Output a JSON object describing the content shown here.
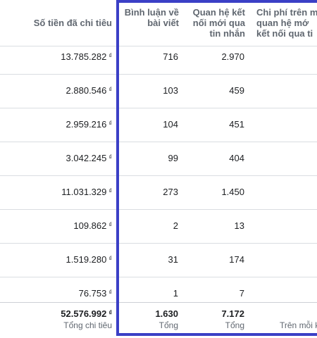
{
  "columns": {
    "spend": "Số tiền đã chi tiêu",
    "comments": "Bình luận về\nbài viết",
    "messaging": "Quan hệ kết\nnối mới qua\ntin nhắn",
    "cost": "Chi phí trên m\nquan hệ mớ\nkết nối qua ti"
  },
  "currency": "₫",
  "rows": [
    {
      "spend": "13.785.282",
      "comments": "716",
      "messaging": "2.970"
    },
    {
      "spend": "2.880.546",
      "comments": "103",
      "messaging": "459"
    },
    {
      "spend": "2.959.216",
      "comments": "104",
      "messaging": "451"
    },
    {
      "spend": "3.042.245",
      "comments": "99",
      "messaging": "404"
    },
    {
      "spend": "11.031.329",
      "comments": "273",
      "messaging": "1.450"
    },
    {
      "spend": "109.862",
      "comments": "2",
      "messaging": "13"
    },
    {
      "spend": "1.519.280",
      "comments": "31",
      "messaging": "174"
    },
    {
      "spend": "76.753",
      "comments": "1",
      "messaging": "7"
    }
  ],
  "totals": {
    "spend": "52.576.992",
    "spend_label": "Tổng chi tiêu",
    "comments": "1.630",
    "comments_label": "Tổng",
    "messaging": "7.172",
    "messaging_label": "Tổng",
    "cost_label": "Trên mỗi k"
  },
  "colors": {
    "selection_border": "#3b40c6",
    "header_text": "#606770"
  }
}
